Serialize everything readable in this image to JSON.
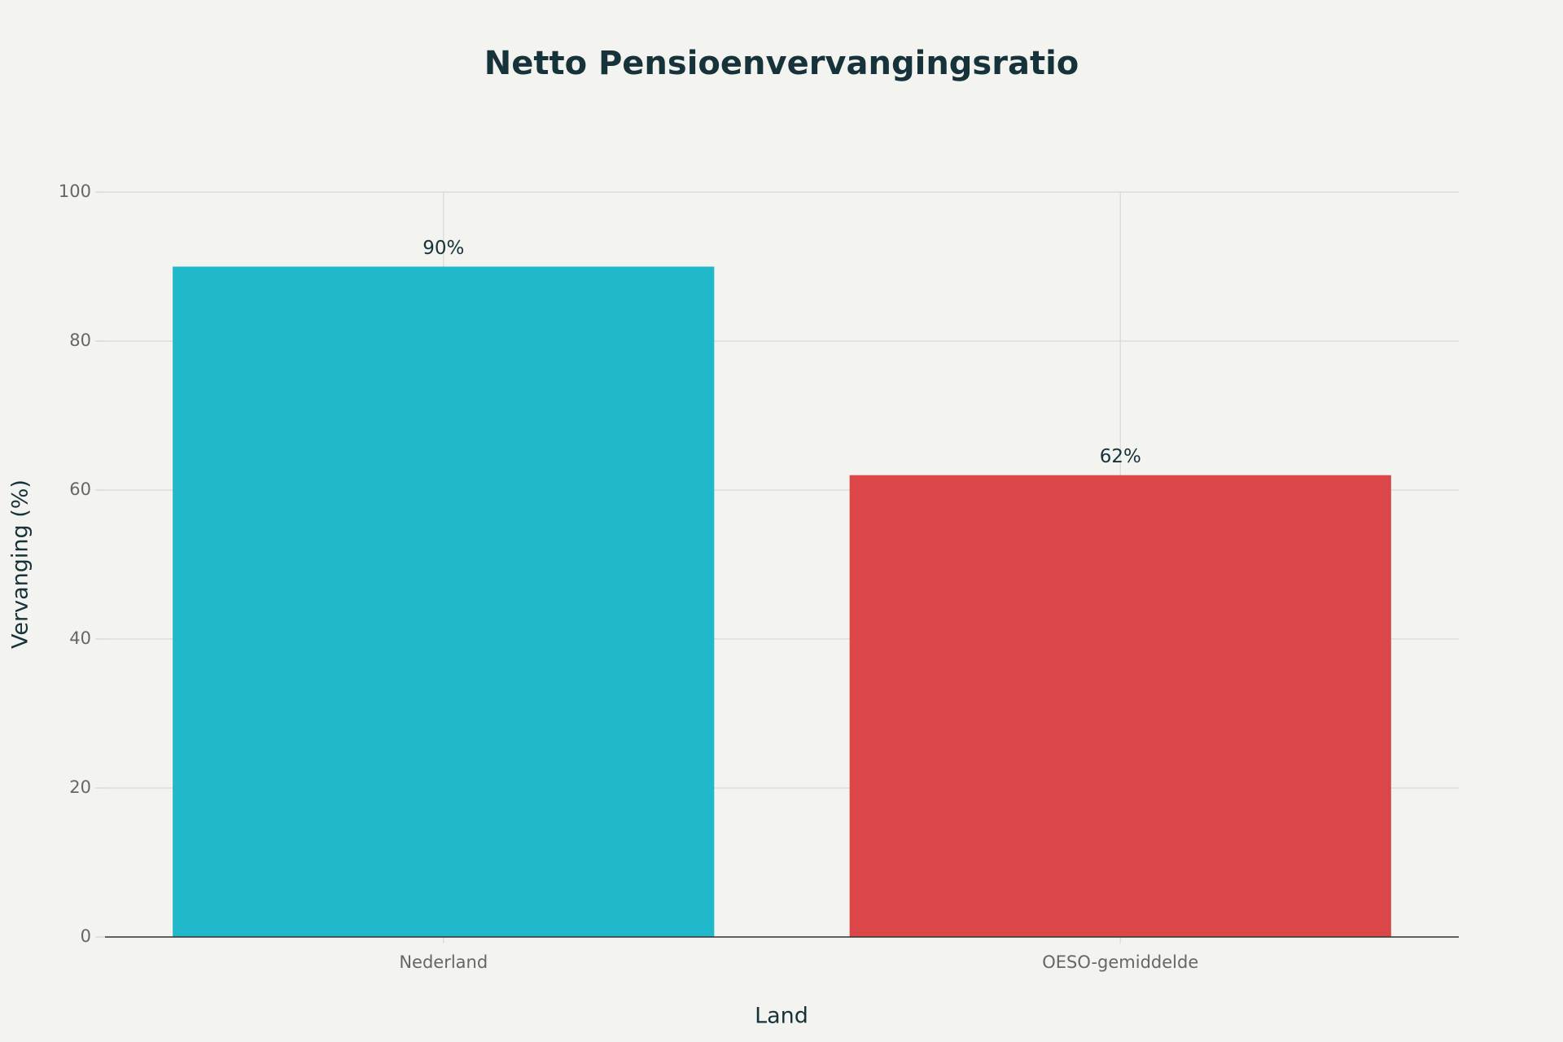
{
  "chart_data": {
    "type": "bar",
    "title": "Netto Pensioenvervangingsratio",
    "x_label": "Land",
    "y_label": "Vervanging (%)",
    "categories": [
      "Nederland",
      "OESO-gemiddelde"
    ],
    "values": [
      90,
      62
    ],
    "value_labels": [
      "90%",
      "62%"
    ],
    "colors": [
      "#21b8cc",
      "#db4649"
    ],
    "ylim": [
      0,
      100
    ],
    "yticks": [
      0,
      20,
      40,
      60,
      80,
      100
    ],
    "grid": true
  }
}
